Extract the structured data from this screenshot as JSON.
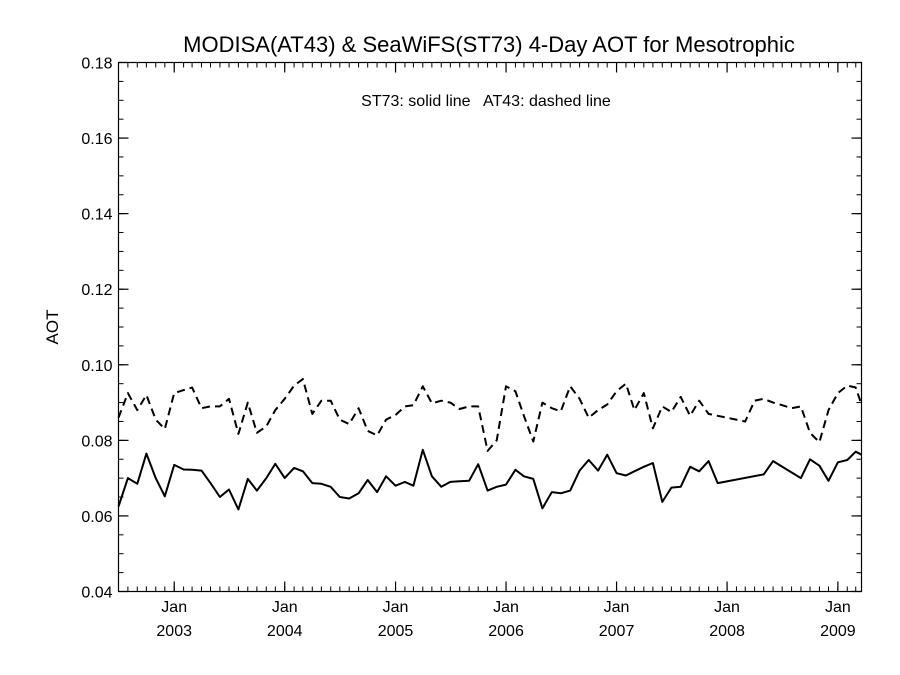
{
  "chart_data": {
    "type": "line",
    "title": "MODISA(AT43) & SeaWiFS(ST73) 4-Day AOT for Mesotrophic",
    "annotation": "ST73: solid line   AT43: dashed line",
    "xlabel": "",
    "ylabel": "AOT",
    "ylim": [
      0.04,
      0.18
    ],
    "yticks": [
      "0.04",
      "0.06",
      "0.08",
      "0.10",
      "0.12",
      "0.14",
      "0.16",
      "0.18"
    ],
    "xlim": [
      "2002-07-01",
      "2009-03-20"
    ],
    "xticks": [
      {
        "month": "Jan",
        "year": "2003",
        "date": "2003-01-01"
      },
      {
        "month": "Jan",
        "year": "2004",
        "date": "2004-01-01"
      },
      {
        "month": "Jan",
        "year": "2005",
        "date": "2005-01-01"
      },
      {
        "month": "Jan",
        "year": "2006",
        "date": "2006-01-01"
      },
      {
        "month": "Jan",
        "year": "2007",
        "date": "2007-01-01"
      },
      {
        "month": "Jan",
        "year": "2008",
        "date": "2008-01-01"
      },
      {
        "month": "Jan",
        "year": "2009",
        "date": "2009-01-01"
      }
    ],
    "grid": false,
    "series": [
      {
        "name": "ST73",
        "style": "solid",
        "color": "#000000",
        "points": [
          [
            "2002-07-01",
            0.0625
          ],
          [
            "2002-08-01",
            0.07
          ],
          [
            "2002-09-01",
            0.0685
          ],
          [
            "2002-10-01",
            0.0765
          ],
          [
            "2002-11-01",
            0.07
          ],
          [
            "2002-12-01",
            0.0652
          ],
          [
            "2003-01-01",
            0.0735
          ],
          [
            "2003-02-01",
            0.0723
          ],
          [
            "2003-03-01",
            0.0722
          ],
          [
            "2003-04-01",
            0.072
          ],
          [
            "2003-05-01",
            0.0687
          ],
          [
            "2003-06-01",
            0.065
          ],
          [
            "2003-07-01",
            0.067
          ],
          [
            "2003-08-01",
            0.0617
          ],
          [
            "2003-09-01",
            0.0698
          ],
          [
            "2003-10-01",
            0.0667
          ],
          [
            "2003-11-01",
            0.07
          ],
          [
            "2003-12-01",
            0.0738
          ],
          [
            "2004-01-01",
            0.07
          ],
          [
            "2004-02-01",
            0.0727
          ],
          [
            "2004-03-01",
            0.0718
          ],
          [
            "2004-04-01",
            0.0687
          ],
          [
            "2004-05-01",
            0.0685
          ],
          [
            "2004-06-01",
            0.0677
          ],
          [
            "2004-07-01",
            0.065
          ],
          [
            "2004-08-01",
            0.0646
          ],
          [
            "2004-09-01",
            0.066
          ],
          [
            "2004-10-01",
            0.0695
          ],
          [
            "2004-11-01",
            0.0663
          ],
          [
            "2004-12-01",
            0.0705
          ],
          [
            "2005-01-01",
            0.068
          ],
          [
            "2005-02-01",
            0.069
          ],
          [
            "2005-03-01",
            0.068
          ],
          [
            "2005-04-01",
            0.0775
          ],
          [
            "2005-05-01",
            0.0705
          ],
          [
            "2005-06-01",
            0.0677
          ],
          [
            "2005-07-01",
            0.069
          ],
          [
            "2005-08-01",
            0.0692
          ],
          [
            "2005-09-01",
            0.0693
          ],
          [
            "2005-10-01",
            0.0737
          ],
          [
            "2005-11-01",
            0.0667
          ],
          [
            "2005-12-01",
            0.0677
          ],
          [
            "2006-01-01",
            0.0683
          ],
          [
            "2006-02-01",
            0.0722
          ],
          [
            "2006-03-01",
            0.0705
          ],
          [
            "2006-04-01",
            0.0698
          ],
          [
            "2006-05-01",
            0.062
          ],
          [
            "2006-06-01",
            0.0663
          ],
          [
            "2006-07-01",
            0.066
          ],
          [
            "2006-08-01",
            0.0667
          ],
          [
            "2006-09-01",
            0.072
          ],
          [
            "2006-10-01",
            0.0748
          ],
          [
            "2006-11-01",
            0.072
          ],
          [
            "2006-12-01",
            0.0762
          ],
          [
            "2007-01-01",
            0.0713
          ],
          [
            "2007-02-01",
            0.0707
          ],
          [
            "2007-03-01",
            0.0718
          ],
          [
            "2007-04-01",
            0.073
          ],
          [
            "2007-05-01",
            0.074
          ],
          [
            "2007-06-01",
            0.0637
          ],
          [
            "2007-07-01",
            0.0675
          ],
          [
            "2007-08-01",
            0.0677
          ],
          [
            "2007-09-01",
            0.073
          ],
          [
            "2007-10-01",
            0.0718
          ],
          [
            "2007-11-01",
            0.0745
          ],
          [
            "2007-12-01",
            0.0687
          ],
          [
            "2008-05-01",
            0.071
          ],
          [
            "2008-06-01",
            0.0745
          ],
          [
            "2008-09-01",
            0.07
          ],
          [
            "2008-10-01",
            0.075
          ],
          [
            "2008-11-01",
            0.0733
          ],
          [
            "2008-12-01",
            0.0693
          ],
          [
            "2009-01-01",
            0.0742
          ],
          [
            "2009-02-01",
            0.0748
          ],
          [
            "2009-03-01",
            0.077
          ],
          [
            "2009-03-20",
            0.0762
          ]
        ]
      },
      {
        "name": "AT43",
        "style": "dashed",
        "color": "#000000",
        "points": [
          [
            "2002-07-01",
            0.086
          ],
          [
            "2002-08-01",
            0.0925
          ],
          [
            "2002-09-01",
            0.088
          ],
          [
            "2002-10-01",
            0.092
          ],
          [
            "2002-11-01",
            0.0855
          ],
          [
            "2002-12-01",
            0.083
          ],
          [
            "2003-01-01",
            0.0925
          ],
          [
            "2003-02-01",
            0.0933
          ],
          [
            "2003-03-01",
            0.094
          ],
          [
            "2003-04-01",
            0.0885
          ],
          [
            "2003-05-01",
            0.089
          ],
          [
            "2003-06-01",
            0.089
          ],
          [
            "2003-07-01",
            0.091
          ],
          [
            "2003-08-01",
            0.0817
          ],
          [
            "2003-09-01",
            0.09
          ],
          [
            "2003-10-01",
            0.082
          ],
          [
            "2003-11-01",
            0.0837
          ],
          [
            "2003-12-01",
            0.088
          ],
          [
            "2004-01-01",
            0.091
          ],
          [
            "2004-02-01",
            0.0945
          ],
          [
            "2004-03-01",
            0.0962
          ],
          [
            "2004-04-01",
            0.087
          ],
          [
            "2004-05-01",
            0.0905
          ],
          [
            "2004-06-01",
            0.0905
          ],
          [
            "2004-07-01",
            0.0855
          ],
          [
            "2004-08-01",
            0.0843
          ],
          [
            "2004-09-01",
            0.0885
          ],
          [
            "2004-10-01",
            0.0825
          ],
          [
            "2004-11-01",
            0.0813
          ],
          [
            "2004-12-01",
            0.0855
          ],
          [
            "2005-01-01",
            0.0867
          ],
          [
            "2005-02-01",
            0.089
          ],
          [
            "2005-03-01",
            0.0893
          ],
          [
            "2005-04-01",
            0.0943
          ],
          [
            "2005-05-01",
            0.0898
          ],
          [
            "2005-06-01",
            0.0905
          ],
          [
            "2005-07-01",
            0.09
          ],
          [
            "2005-08-01",
            0.0883
          ],
          [
            "2005-09-01",
            0.089
          ],
          [
            "2005-10-01",
            0.089
          ],
          [
            "2005-11-01",
            0.0772
          ],
          [
            "2005-12-01",
            0.08
          ],
          [
            "2006-01-01",
            0.0943
          ],
          [
            "2006-02-01",
            0.093
          ],
          [
            "2006-03-01",
            0.0865
          ],
          [
            "2006-04-01",
            0.0797
          ],
          [
            "2006-05-01",
            0.09
          ],
          [
            "2006-06-01",
            0.0885
          ],
          [
            "2006-07-01",
            0.0877
          ],
          [
            "2006-08-01",
            0.0943
          ],
          [
            "2006-09-01",
            0.091
          ],
          [
            "2006-10-01",
            0.086
          ],
          [
            "2006-11-01",
            0.088
          ],
          [
            "2006-12-01",
            0.0895
          ],
          [
            "2007-01-01",
            0.093
          ],
          [
            "2007-02-01",
            0.095
          ],
          [
            "2007-03-01",
            0.088
          ],
          [
            "2007-04-01",
            0.0925
          ],
          [
            "2007-05-01",
            0.0832
          ],
          [
            "2007-06-01",
            0.089
          ],
          [
            "2007-07-01",
            0.0875
          ],
          [
            "2007-08-01",
            0.0915
          ],
          [
            "2007-09-01",
            0.0865
          ],
          [
            "2007-10-01",
            0.0905
          ],
          [
            "2007-11-01",
            0.087
          ],
          [
            "2007-12-01",
            0.0865
          ],
          [
            "2008-01-01",
            0.086
          ],
          [
            "2008-03-01",
            0.085
          ],
          [
            "2008-04-01",
            0.0905
          ],
          [
            "2008-05-01",
            0.091
          ],
          [
            "2008-06-01",
            0.09
          ],
          [
            "2008-07-01",
            0.0893
          ],
          [
            "2008-08-01",
            0.0885
          ],
          [
            "2008-09-01",
            0.089
          ],
          [
            "2008-10-01",
            0.082
          ],
          [
            "2008-11-01",
            0.0795
          ],
          [
            "2008-12-01",
            0.088
          ],
          [
            "2009-01-01",
            0.0925
          ],
          [
            "2009-02-01",
            0.0945
          ],
          [
            "2009-03-01",
            0.094
          ],
          [
            "2009-03-20",
            0.0895
          ]
        ]
      }
    ]
  }
}
